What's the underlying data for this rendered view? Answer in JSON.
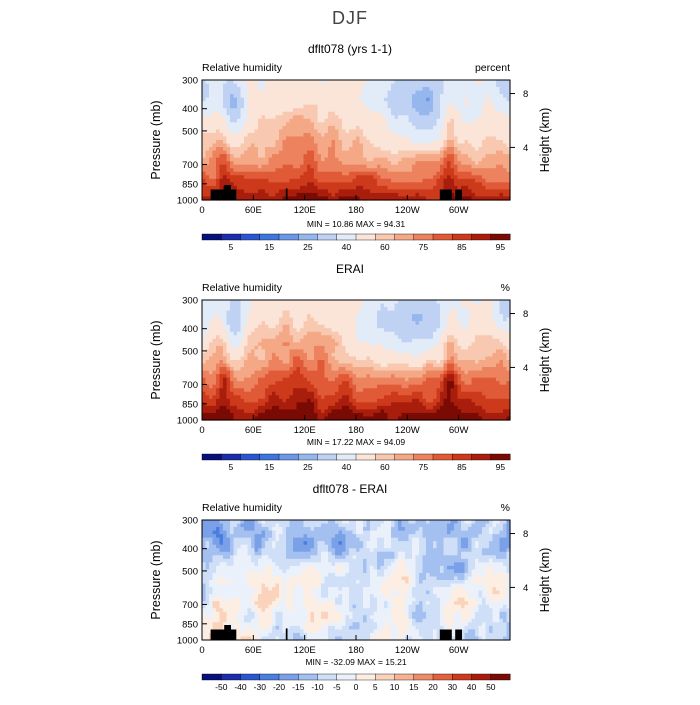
{
  "figure": {
    "title": "DJF"
  },
  "chart_data": [
    {
      "type": "heatmap",
      "title": "dflt078 (yrs 1-1)",
      "left_string": "Relative humidity",
      "right_string": "percent",
      "ylabel": "Pressure (mb)",
      "y2label": "Height (km)",
      "yticks": [
        "300",
        "400",
        "500",
        "700",
        "850",
        "1000"
      ],
      "y2ticks": [
        "8",
        "4"
      ],
      "xticks": [
        "0",
        "60E",
        "120E",
        "180",
        "120W",
        "60W"
      ],
      "stats": "MIN =   10.86   MAX =   94.31",
      "colorbar_labels": [
        "5",
        "15",
        "25",
        "40",
        "60",
        "75",
        "85",
        "95"
      ],
      "min": 10.86,
      "max": 94.31
    },
    {
      "type": "heatmap",
      "title": "ERAI",
      "left_string": "Relative humidity",
      "right_string": "%",
      "ylabel": "Pressure (mb)",
      "y2label": "Height (km)",
      "yticks": [
        "300",
        "400",
        "500",
        "700",
        "850",
        "1000"
      ],
      "y2ticks": [
        "8",
        "4"
      ],
      "xticks": [
        "0",
        "60E",
        "120E",
        "180",
        "120W",
        "60W"
      ],
      "stats": "MIN =   17.22   MAX =   94.09",
      "colorbar_labels": [
        "5",
        "15",
        "25",
        "40",
        "60",
        "75",
        "85",
        "95"
      ],
      "min": 17.22,
      "max": 94.09
    },
    {
      "type": "heatmap",
      "title": "dflt078 - ERAI",
      "left_string": "Relative humidity",
      "right_string": "%",
      "ylabel": "Pressure (mb)",
      "y2label": "Height (km)",
      "yticks": [
        "300",
        "400",
        "500",
        "700",
        "850",
        "1000"
      ],
      "y2ticks": [
        "8",
        "4"
      ],
      "xticks": [
        "0",
        "60E",
        "120E",
        "180",
        "120W",
        "60W"
      ],
      "stats": "MIN =  -32.09   MAX =   15.21",
      "colorbar_labels": [
        "-50",
        "-40",
        "-30",
        "-20",
        "-15",
        "-10",
        "-5",
        "0",
        "5",
        "10",
        "15",
        "20",
        "30",
        "40",
        "50"
      ],
      "min": -32.09,
      "max": 15.21
    }
  ],
  "palette_rh": [
    "#08107a",
    "#1a2ea8",
    "#2d55cf",
    "#3f76dd",
    "#6b97e6",
    "#96b6ee",
    "#c0d2f4",
    "#e2ebf8",
    "#fbe4d8",
    "#f9c8b0",
    "#f4a886",
    "#ec825e",
    "#e15a38",
    "#cc3a1b",
    "#a81d0c",
    "#7a0a04"
  ],
  "palette_diff": [
    "#08107a",
    "#1a2ea8",
    "#2d55cf",
    "#4a7fe0",
    "#7aa1e8",
    "#a4c0f0",
    "#cfdff7",
    "#eaf1fb",
    "#fdeee4",
    "#fad3bd",
    "#f6b293",
    "#ee8c68",
    "#e2613f",
    "#cb3b1c",
    "#a61d0b",
    "#7a0a04"
  ]
}
